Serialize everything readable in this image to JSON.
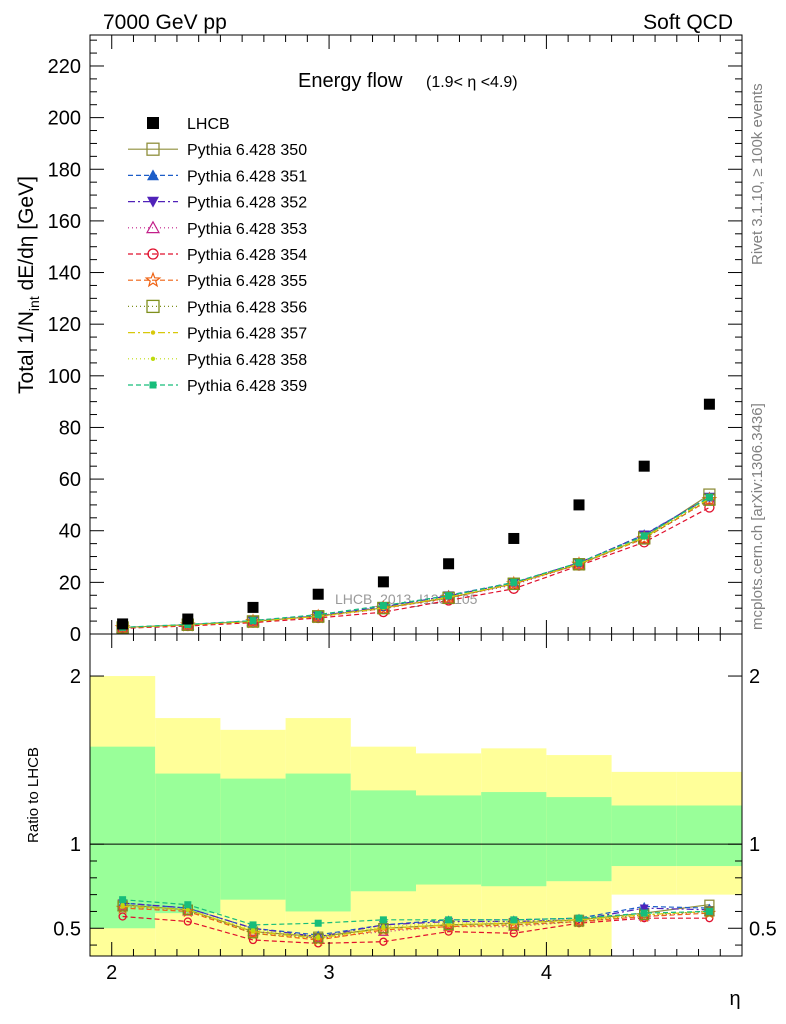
{
  "header": {
    "left": "7000 GeV pp",
    "right": "Soft QCD"
  },
  "side_labels": {
    "rivet": "Rivet 3.1.10, ≥ 100k events",
    "mcplots": "mcplots.cern.ch [arXiv:1306.3436]"
  },
  "watermark": "LHCB_2013_I1208105",
  "chart_data": [
    {
      "type": "scatter",
      "panel": "main",
      "title": "Energy flow",
      "title_sub": "(1.9< η <4.9)",
      "ylabel": "Total 1/N_int dE/dη [GeV]",
      "ylim": [
        0,
        232
      ],
      "yticks": [
        0,
        20,
        40,
        60,
        80,
        100,
        120,
        140,
        160,
        180,
        200,
        220
      ],
      "xlim": [
        1.9,
        4.9
      ],
      "x": [
        2.05,
        2.35,
        2.65,
        2.95,
        3.25,
        3.55,
        3.85,
        4.15,
        4.45,
        4.75
      ],
      "data": {
        "name": "LHCB",
        "values": [
          3.9,
          5.8,
          10.3,
          15.4,
          20.2,
          27.2,
          37.0,
          50.0,
          65.0,
          89.0
        ]
      },
      "series": [
        {
          "name": "Pythia 6.428 350",
          "color": "#8f8f3c",
          "values": [
            2.5,
            3.6,
            4.9,
            6.9,
            10.1,
            14.0,
            19.5,
            27.0,
            37.5,
            54.0
          ]
        },
        {
          "name": "Pythia 6.428 351",
          "color": "#1c5dc8",
          "values": [
            2.5,
            3.6,
            5.2,
            7.0,
            10.6,
            15.0,
            20.0,
            27.5,
            38.5,
            53.0
          ]
        },
        {
          "name": "Pythia 6.428 352",
          "color": "#5022b9",
          "values": [
            2.5,
            3.6,
            5.1,
            7.0,
            10.5,
            14.8,
            19.8,
            27.6,
            38.4,
            53.0
          ]
        },
        {
          "name": "Pythia 6.428 353",
          "color": "#c21f89",
          "values": [
            2.4,
            3.5,
            5.0,
            6.8,
            9.8,
            14.0,
            19.0,
            27.0,
            37.0,
            52.0
          ]
        },
        {
          "name": "Pythia 6.428 354",
          "color": "#e0102d",
          "values": [
            2.2,
            3.1,
            4.4,
            6.2,
            8.5,
            13.0,
            17.5,
            26.5,
            35.5,
            49.0
          ]
        },
        {
          "name": "Pythia 6.428 355",
          "color": "#ef6212",
          "values": [
            2.4,
            3.5,
            4.8,
            6.7,
            9.9,
            14.0,
            19.4,
            27.0,
            37.0,
            52.0
          ]
        },
        {
          "name": "Pythia 6.428 356",
          "color": "#7f8f1d",
          "values": [
            2.5,
            3.6,
            4.8,
            6.7,
            10.0,
            14.0,
            19.4,
            27.0,
            37.0,
            52.0
          ]
        },
        {
          "name": "Pythia 6.428 357",
          "color": "#d8c80a",
          "values": [
            2.5,
            3.5,
            4.9,
            6.8,
            10.1,
            14.2,
            19.5,
            27.2,
            37.3,
            52.5
          ]
        },
        {
          "name": "Pythia 6.428 358",
          "color": "#bedb0c",
          "values": [
            2.5,
            3.5,
            4.9,
            6.8,
            10.2,
            14.3,
            19.6,
            27.3,
            37.4,
            52.6
          ]
        },
        {
          "name": "Pythia 6.428 359",
          "color": "#17bd7a",
          "values": [
            2.6,
            3.7,
            5.2,
            7.5,
            11.0,
            14.8,
            20.0,
            27.6,
            38.0,
            53.0
          ]
        }
      ]
    },
    {
      "type": "line",
      "panel": "ratio",
      "ylabel": "Ratio to LHCB",
      "xlabel": "η",
      "ylim": [
        0.335,
        2.25
      ],
      "yticks_right": [
        0.5,
        1,
        2
      ],
      "yticks_left": [
        0.5,
        1,
        2
      ],
      "xticks": [
        2,
        3,
        4
      ],
      "bins": [
        [
          1.9,
          2.2
        ],
        [
          2.2,
          2.5
        ],
        [
          2.5,
          2.8
        ],
        [
          2.8,
          3.1
        ],
        [
          3.1,
          3.4
        ],
        [
          3.4,
          3.7
        ],
        [
          3.7,
          4.0
        ],
        [
          4.0,
          4.3
        ],
        [
          4.3,
          4.6
        ],
        [
          4.6,
          4.9
        ]
      ],
      "band_inner": [
        [
          0.5,
          1.58
        ],
        [
          0.59,
          1.42
        ],
        [
          0.67,
          1.39
        ],
        [
          0.6,
          1.42
        ],
        [
          0.72,
          1.32
        ],
        [
          0.76,
          1.29
        ],
        [
          0.75,
          1.31
        ],
        [
          0.78,
          1.28
        ],
        [
          0.87,
          1.23
        ],
        [
          0.87,
          1.23
        ]
      ],
      "band_outer": [
        [
          0.3,
          2.0
        ],
        [
          0.3,
          1.75
        ],
        [
          0.3,
          1.68
        ],
        [
          0.3,
          1.75
        ],
        [
          0.3,
          1.58
        ],
        [
          0.3,
          1.54
        ],
        [
          0.3,
          1.57
        ],
        [
          0.3,
          1.53
        ],
        [
          0.7,
          1.43
        ],
        [
          0.7,
          1.43
        ]
      ],
      "x": [
        2.05,
        2.35,
        2.65,
        2.95,
        3.25,
        3.55,
        3.85,
        4.15,
        4.45,
        4.75
      ],
      "series": [
        {
          "name": "Pythia 6.428 350",
          "values": [
            0.64,
            0.61,
            0.48,
            0.45,
            0.5,
            0.52,
            0.53,
            0.55,
            0.59,
            0.64
          ]
        },
        {
          "name": "Pythia 6.428 351",
          "values": [
            0.65,
            0.62,
            0.5,
            0.46,
            0.52,
            0.55,
            0.55,
            0.56,
            0.63,
            0.62
          ]
        },
        {
          "name": "Pythia 6.428 352",
          "values": [
            0.65,
            0.62,
            0.5,
            0.45,
            0.52,
            0.54,
            0.54,
            0.55,
            0.62,
            0.61
          ]
        },
        {
          "name": "Pythia 6.428 353",
          "values": [
            0.63,
            0.6,
            0.48,
            0.44,
            0.48,
            0.51,
            0.51,
            0.54,
            0.57,
            0.6
          ]
        },
        {
          "name": "Pythia 6.428 354",
          "values": [
            0.57,
            0.54,
            0.43,
            0.41,
            0.42,
            0.48,
            0.47,
            0.53,
            0.56,
            0.56
          ]
        },
        {
          "name": "Pythia 6.428 355",
          "values": [
            0.62,
            0.6,
            0.47,
            0.43,
            0.49,
            0.51,
            0.52,
            0.54,
            0.57,
            0.59
          ]
        },
        {
          "name": "Pythia 6.428 356",
          "values": [
            0.63,
            0.61,
            0.47,
            0.44,
            0.5,
            0.52,
            0.52,
            0.54,
            0.58,
            0.6
          ]
        },
        {
          "name": "Pythia 6.428 357",
          "values": [
            0.63,
            0.61,
            0.48,
            0.44,
            0.5,
            0.52,
            0.53,
            0.55,
            0.58,
            0.6
          ]
        },
        {
          "name": "Pythia 6.428 358",
          "values": [
            0.64,
            0.61,
            0.49,
            0.45,
            0.51,
            0.53,
            0.54,
            0.55,
            0.58,
            0.6
          ]
        },
        {
          "name": "Pythia 6.428 359",
          "values": [
            0.67,
            0.64,
            0.52,
            0.53,
            0.55,
            0.55,
            0.55,
            0.56,
            0.59,
            0.6
          ]
        }
      ]
    }
  ]
}
